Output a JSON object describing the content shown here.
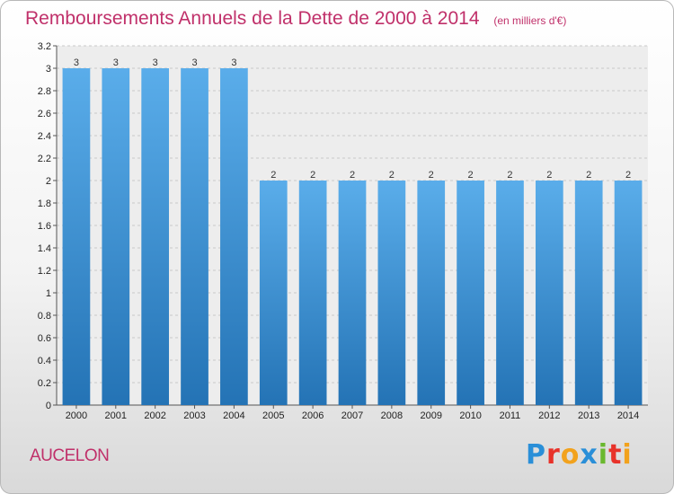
{
  "header": {
    "title": "Remboursements Annuels de la Dette de 2000 à 2014",
    "unit": "(en milliers d'€)"
  },
  "footer": {
    "commune": "AUCELON",
    "brand": "Proxiti"
  },
  "colors": {
    "title": "#c0306a",
    "bar_top": "#5aadea",
    "bar_bottom": "#2473b5",
    "brand_letters": [
      "#2a8fd8",
      "#e8322a",
      "#f2a21d",
      "#2a8fd8",
      "#6ab82f",
      "#e8322a",
      "#f2a21d"
    ]
  },
  "chart_data": {
    "type": "bar",
    "title": "Remboursements Annuels de la Dette de 2000 à 2014",
    "ylabel": "(en milliers d'€)",
    "xlabel": "",
    "categories": [
      "2000",
      "2001",
      "2002",
      "2003",
      "2004",
      "2005",
      "2006",
      "2007",
      "2008",
      "2009",
      "2010",
      "2011",
      "2012",
      "2013",
      "2014"
    ],
    "values": [
      3,
      3,
      3,
      3,
      3,
      2,
      2,
      2,
      2,
      2,
      2,
      2,
      2,
      2,
      2
    ],
    "data_labels": [
      "3",
      "3",
      "3",
      "3",
      "3",
      "2",
      "2",
      "2",
      "2",
      "2",
      "2",
      "2",
      "2",
      "2",
      "2"
    ],
    "ylim": [
      0,
      3.2
    ],
    "yticks": [
      0,
      0.2,
      0.4,
      0.6,
      0.8,
      1,
      1.2,
      1.4,
      1.6,
      1.8,
      2,
      2.2,
      2.4,
      2.6,
      2.8,
      3,
      3.2
    ],
    "ytick_labels": [
      "0",
      "0.2",
      "0.4",
      "0.6",
      "0.8",
      "1",
      "1.2",
      "1.4",
      "1.6",
      "1.8",
      "2",
      "2.2",
      "2.4",
      "2.6",
      "2.8",
      "3",
      "3.2"
    ],
    "grid": true,
    "legend": "none"
  }
}
